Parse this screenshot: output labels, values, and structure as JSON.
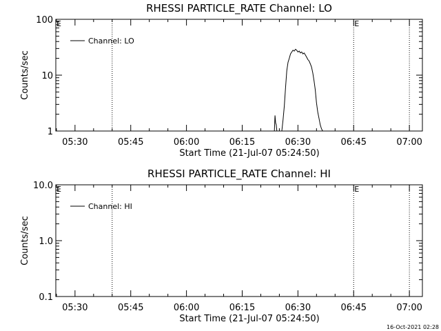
{
  "footer_timestamp": "16-Oct-2021 02:28",
  "chart_data": [
    {
      "type": "line",
      "title": "RHESSI PARTICLE_RATE Channel: LO",
      "xlabel": "Start Time (21-Jul-07 05:24:50)",
      "ylabel": "Counts/sec",
      "yscale": "log",
      "ylim": [
        1,
        100
      ],
      "xlim": [
        "05:24:50",
        "07:03:30"
      ],
      "xticks": [
        "05:30",
        "05:45",
        "06:00",
        "06:15",
        "06:30",
        "06:45",
        "07:00"
      ],
      "yticks": [
        "1",
        "10",
        "100"
      ],
      "vlines": [
        "05:40:00",
        "06:45:00",
        "07:00:00"
      ],
      "markers": [
        {
          "text": "E",
          "x": "05:24:50"
        },
        {
          "text": "E",
          "x": "06:45:00"
        }
      ],
      "legend": {
        "label": "Channel: LO",
        "position": "top-left"
      },
      "series": [
        {
          "name": "Channel: LO",
          "segments": [
            {
              "x": [
                "06:23:40",
                "06:23:50",
                "06:24:00",
                "06:24:10",
                "06:24:20"
              ],
              "y": [
                1.0,
                1.9,
                1.4,
                1.3,
                1.0
              ]
            },
            {
              "x": [
                "06:25:40",
                "06:26:00",
                "06:26:20",
                "06:26:40",
                "06:27:00",
                "06:27:20",
                "06:27:40",
                "06:28:00",
                "06:28:20",
                "06:28:40",
                "06:29:00",
                "06:29:20",
                "06:29:40",
                "06:30:00",
                "06:30:20",
                "06:30:40",
                "06:31:00",
                "06:31:20",
                "06:31:40",
                "06:32:00",
                "06:32:20",
                "06:32:40",
                "06:33:00",
                "06:33:20",
                "06:33:40",
                "06:34:00",
                "06:34:20",
                "06:34:40",
                "06:35:00",
                "06:35:20",
                "06:35:40",
                "06:36:00",
                "06:36:20",
                "06:36:40"
              ],
              "y": [
                1.0,
                1.6,
                2.8,
                6.0,
                12,
                17,
                20,
                24,
                26,
                28,
                27,
                29,
                28,
                26,
                27,
                25,
                26,
                24,
                25,
                23,
                21,
                19,
                18,
                16,
                14,
                11,
                8,
                5.5,
                3.2,
                2.2,
                1.7,
                1.3,
                1.1,
                1.0
              ]
            }
          ]
        }
      ]
    },
    {
      "type": "line",
      "title": "RHESSI PARTICLE_RATE Channel: HI",
      "xlabel": "Start Time (21-Jul-07 05:24:50)",
      "ylabel": "Counts/sec",
      "yscale": "log",
      "ylim": [
        0.1,
        10
      ],
      "xlim": [
        "05:24:50",
        "07:03:30"
      ],
      "xticks": [
        "05:30",
        "05:45",
        "06:00",
        "06:15",
        "06:30",
        "06:45",
        "07:00"
      ],
      "yticks": [
        "0.1",
        "1.0",
        "10.0"
      ],
      "vlines": [
        "05:40:00",
        "06:45:00",
        "07:00:00"
      ],
      "markers": [
        {
          "text": "E",
          "x": "05:24:50"
        },
        {
          "text": "E",
          "x": "06:45:00"
        }
      ],
      "legend": {
        "label": "Channel: HI",
        "position": "top-left"
      },
      "series": [
        {
          "name": "Channel: HI",
          "segments": []
        }
      ]
    }
  ]
}
